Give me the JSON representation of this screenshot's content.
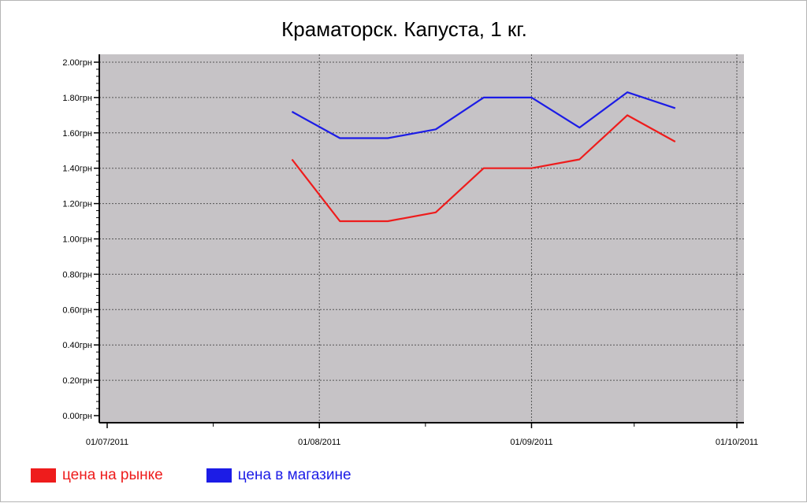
{
  "chart_data": {
    "type": "line",
    "title": "Краматорск. Капуста, 1 кг.",
    "xlabel": "",
    "ylabel": "",
    "x_ticks": [
      "01/07/2011",
      "01/08/2011",
      "01/09/2011",
      "01/10/2011"
    ],
    "y_ticks": [
      "0.00грн",
      "0.20грн",
      "0.40грн",
      "0.60грн",
      "0.80грн",
      "1.00грн",
      "1.20грн",
      "1.40грн",
      "1.60грн",
      "1.80грн",
      "2.00грн"
    ],
    "ylim": [
      0,
      2.0
    ],
    "xlim": [
      "2011-07-01",
      "2011-10-01"
    ],
    "grid": true,
    "legend_position": "bottom-left",
    "series": [
      {
        "name": "цена на рынке",
        "color": "#ee1c1c",
        "points": [
          {
            "x": "2011-07-28",
            "y": 1.45
          },
          {
            "x": "2011-08-04",
            "y": 1.1
          },
          {
            "x": "2011-08-11",
            "y": 1.1
          },
          {
            "x": "2011-08-18",
            "y": 1.15
          },
          {
            "x": "2011-08-25",
            "y": 1.4
          },
          {
            "x": "2011-09-01",
            "y": 1.4
          },
          {
            "x": "2011-09-08",
            "y": 1.45
          },
          {
            "x": "2011-09-15",
            "y": 1.7
          },
          {
            "x": "2011-09-22",
            "y": 1.55
          }
        ]
      },
      {
        "name": "цена в магазине",
        "color": "#1c1ce6",
        "points": [
          {
            "x": "2011-07-28",
            "y": 1.72
          },
          {
            "x": "2011-08-04",
            "y": 1.57
          },
          {
            "x": "2011-08-11",
            "y": 1.57
          },
          {
            "x": "2011-08-18",
            "y": 1.62
          },
          {
            "x": "2011-08-25",
            "y": 1.8
          },
          {
            "x": "2011-09-01",
            "y": 1.8
          },
          {
            "x": "2011-09-08",
            "y": 1.63
          },
          {
            "x": "2011-09-15",
            "y": 1.83
          },
          {
            "x": "2011-09-22",
            "y": 1.74
          }
        ]
      }
    ],
    "colors": {
      "plot_background": "#c6c3c6",
      "grid": "#555555",
      "axis": "#000000"
    }
  }
}
